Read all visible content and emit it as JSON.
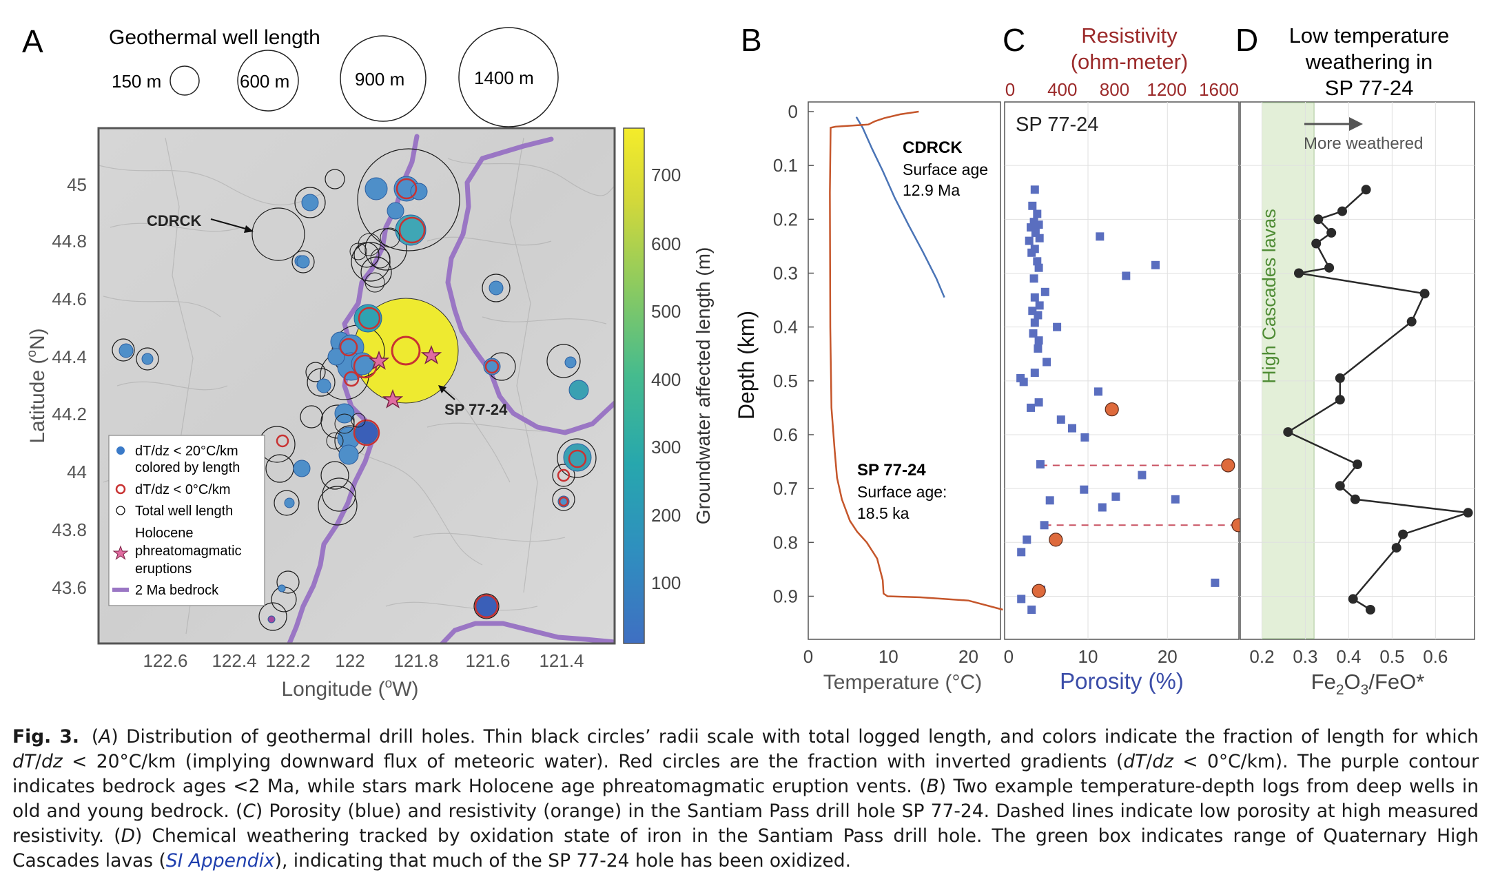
{
  "panel_letters": {
    "a": "A",
    "b": "B",
    "c": "C",
    "d": "D"
  },
  "panelA": {
    "legend_title": "Geothermal well length",
    "size_legend": [
      "150 m",
      "600 m",
      "900 m",
      "1400 m"
    ],
    "xticks": [
      "122.6",
      "122.4",
      "122.2",
      "122",
      "121.8",
      "121.6",
      "121.4"
    ],
    "yticks": [
      "45",
      "44.8",
      "44.6",
      "44.4",
      "44.2",
      "44",
      "43.8",
      "43.6"
    ],
    "xlabel_pre": "Longitude (",
    "xlabel_sup": "o",
    "xlabel_post": "W)",
    "ylabel_pre": "Latitude (",
    "ylabel_sup": "o",
    "ylabel_post": "N)",
    "colorbar_label": "Groundwater affected length (m)",
    "colorbar_ticks": [
      "700",
      "600",
      "500",
      "400",
      "300",
      "200",
      "100"
    ],
    "annot_cdrck": "CDRCK",
    "annot_sp": "SP 77-24",
    "legend": {
      "blue_l1": "dT/dz < 20°C/km",
      "blue_l2": "colored by length",
      "red": "dT/dz < 0°C/km",
      "black": "Total well length",
      "star_l1": "Holocene",
      "star_l2": "phreatomagmatic",
      "star_l3": "eruptions",
      "purple": "2 Ma bedrock"
    }
  },
  "panelB": {
    "xticks": [
      "0",
      "10",
      "20"
    ],
    "yticks": [
      "0",
      "0.1",
      "0.2",
      "0.3",
      "0.4",
      "0.5",
      "0.6",
      "0.7",
      "0.8",
      "0.9"
    ],
    "xlabel": "Temperature (°C)",
    "ylabel": "Depth (km)",
    "cdrck_title": "CDRCK",
    "cdrck_l1": "Surface age",
    "cdrck_l2": "12.9 Ma",
    "sp_title": "SP 77-24",
    "sp_l1": "Surface age:",
    "sp_l2": "18.5 ka"
  },
  "panelC": {
    "top_title_l1": "Resistivity",
    "top_title_l2": "(ohm-meter)",
    "top_ticks": [
      "0",
      "400",
      "800",
      "1200",
      "1600"
    ],
    "xticks": [
      "0",
      "10",
      "20"
    ],
    "xlabel": "Porosity (%)",
    "inner_label": "SP 77-24"
  },
  "panelD": {
    "title_l1": "Low temperature",
    "title_l2": "weathering in",
    "title_l3": "SP 77-24",
    "arrow_label": "More weathered",
    "band_label": "High Cascades lavas",
    "xticks": [
      "0.2",
      "0.3",
      "0.4",
      "0.5",
      "0.6"
    ],
    "xlabel_pre": "Fe",
    "xlabel_s1": "2",
    "xlabel_mid": "O",
    "xlabel_s2": "3",
    "xlabel_post": "/FeO*"
  },
  "colors": {
    "blue": "#4e73c1",
    "orange": "#c5562b",
    "red": "#c83232",
    "purple": "#9a76c4",
    "green": "#5f9a3e",
    "resist": "#9b2a2a",
    "dark": "#2a2a2a"
  },
  "chart_data": [
    {
      "type": "line",
      "panel": "B",
      "xlabel": "Temperature (°C)",
      "ylabel": "Depth (km)",
      "xlim": [
        0,
        24
      ],
      "ylim": [
        0,
        0.98
      ],
      "series": [
        {
          "name": "CDRCK",
          "color": "#4a74b6",
          "x": [
            6.0,
            6.8,
            8.0,
            9.3,
            10.8,
            12.5,
            14.3,
            16.0,
            17.0
          ],
          "y": [
            0.01,
            0.03,
            0.07,
            0.11,
            0.16,
            0.21,
            0.26,
            0.31,
            0.345
          ]
        },
        {
          "name": "SP 77-24",
          "color": "#c5562b",
          "x": [
            13.8,
            11.5,
            9.5,
            8.3,
            7.5,
            3.4,
            2.8,
            2.7,
            2.75,
            2.9,
            3.3,
            3.6,
            4.2,
            5.2,
            6.1,
            7.3,
            8.6,
            9.3,
            9.4,
            9.9,
            14.0,
            20.0,
            24.3
          ],
          "y": [
            0.0,
            0.005,
            0.012,
            0.018,
            0.024,
            0.028,
            0.03,
            0.15,
            0.4,
            0.55,
            0.63,
            0.68,
            0.72,
            0.76,
            0.78,
            0.8,
            0.83,
            0.87,
            0.895,
            0.9,
            0.902,
            0.908,
            0.925
          ]
        }
      ]
    },
    {
      "type": "scatter",
      "panel": "C",
      "xlabel": "Porosity (%)",
      "xlim": [
        -0.5,
        29
      ],
      "ylim": [
        0,
        0.98
      ],
      "series": [
        {
          "name": "Porosity",
          "color": "#5a6ebf",
          "points": [
            [
              3.3,
              0.145
            ],
            [
              3.0,
              0.175
            ],
            [
              3.6,
              0.19
            ],
            [
              3.2,
              0.205
            ],
            [
              3.8,
              0.21
            ],
            [
              2.8,
              0.215
            ],
            [
              3.4,
              0.225
            ],
            [
              3.9,
              0.235
            ],
            [
              2.6,
              0.24
            ],
            [
              3.3,
              0.255
            ],
            [
              11.5,
              0.232
            ],
            [
              2.9,
              0.262
            ],
            [
              3.6,
              0.278
            ],
            [
              3.8,
              0.29
            ],
            [
              18.5,
              0.285
            ],
            [
              14.8,
              0.305
            ],
            [
              3.2,
              0.31
            ],
            [
              4.6,
              0.335
            ],
            [
              3.3,
              0.345
            ],
            [
              3.9,
              0.36
            ],
            [
              3.0,
              0.37
            ],
            [
              3.7,
              0.378
            ],
            [
              3.3,
              0.392
            ],
            [
              6.1,
              0.4
            ],
            [
              3.1,
              0.412
            ],
            [
              3.8,
              0.425
            ],
            [
              3.7,
              0.44
            ],
            [
              4.8,
              0.465
            ],
            [
              3.3,
              0.485
            ],
            [
              1.5,
              0.495
            ],
            [
              1.9,
              0.502
            ],
            [
              11.3,
              0.52
            ],
            [
              3.8,
              0.54
            ],
            [
              2.8,
              0.55
            ],
            [
              6.6,
              0.572
            ],
            [
              8.0,
              0.588
            ],
            [
              9.6,
              0.605
            ],
            [
              4.0,
              0.655
            ],
            [
              16.8,
              0.675
            ],
            [
              9.5,
              0.702
            ],
            [
              13.5,
              0.715
            ],
            [
              5.2,
              0.722
            ],
            [
              21.0,
              0.72
            ],
            [
              11.8,
              0.735
            ],
            [
              4.5,
              0.768
            ],
            [
              2.3,
              0.795
            ],
            [
              1.6,
              0.818
            ],
            [
              26.0,
              0.875
            ],
            [
              4.1,
              0.888
            ],
            [
              1.6,
              0.905
            ],
            [
              2.9,
              0.925
            ]
          ]
        },
        {
          "name": "Resistivity",
          "color": "#de6a3c",
          "x_units": "ohm-meter",
          "points": [
            [
              780,
              0.553
            ],
            [
              1670,
              0.657
            ],
            [
              1750,
              0.768
            ],
            [
              350,
              0.795
            ],
            [
              220,
              0.89
            ]
          ]
        }
      ],
      "dashed_lines": [
        {
          "depth": 0.657,
          "x_from": 4.0,
          "x_to": 27.0
        },
        {
          "depth": 0.768,
          "x_from": 4.5,
          "x_to": 28.2
        }
      ]
    },
    {
      "type": "line",
      "panel": "D",
      "xlabel": "Fe2O3/FeO*",
      "xlim": [
        0.15,
        0.69
      ],
      "ylim": [
        0,
        0.98
      ],
      "green_band": [
        0.2,
        0.32
      ],
      "series": [
        {
          "name": "Fe2O3/FeO*",
          "color": "#2a2a2a",
          "x": [
            0.44,
            0.385,
            0.33,
            0.36,
            0.325,
            0.355,
            0.285,
            0.575,
            0.545,
            0.38,
            0.38,
            0.26,
            0.42,
            0.38,
            0.415,
            0.675,
            0.525,
            0.51,
            0.41,
            0.45
          ],
          "y": [
            0.145,
            0.185,
            0.2,
            0.225,
            0.245,
            0.29,
            0.3,
            0.338,
            0.39,
            0.495,
            0.535,
            0.595,
            0.655,
            0.695,
            0.72,
            0.745,
            0.785,
            0.81,
            0.905,
            0.925
          ]
        }
      ]
    }
  ]
}
